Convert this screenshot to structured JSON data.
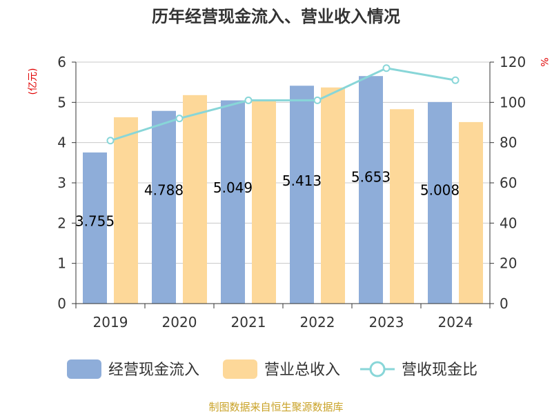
{
  "chart_data": {
    "type": "bar",
    "title": "历年经营现金流入、营业收入情况",
    "left_unit": "(亿元)",
    "right_unit": "%",
    "categories": [
      "2019",
      "2020",
      "2021",
      "2022",
      "2023",
      "2024"
    ],
    "series": [
      {
        "name": "经营现金流入",
        "type": "bar",
        "axis": "left",
        "color": "#8eadd9",
        "values": [
          3.755,
          4.788,
          5.049,
          5.413,
          5.653,
          5.008
        ],
        "labels": [
          "3.755",
          "4.788",
          "5.049",
          "5.413",
          "5.653",
          "5.008"
        ]
      },
      {
        "name": "营业总收入",
        "type": "bar",
        "axis": "left",
        "color": "#fdd899",
        "values": [
          4.63,
          5.18,
          5.05,
          5.37,
          4.83,
          4.51
        ]
      },
      {
        "name": "营收现金比",
        "type": "line",
        "axis": "right",
        "color": "#88d6d8",
        "values": [
          81,
          92,
          101,
          101,
          117,
          111
        ]
      }
    ],
    "y_left": {
      "min": 0,
      "max": 6,
      "ticks": [
        "0",
        "1",
        "2",
        "3",
        "4",
        "5",
        "6"
      ]
    },
    "y_right": {
      "min": 0,
      "max": 120,
      "ticks": [
        "0",
        "20",
        "40",
        "60",
        "80",
        "100",
        "120"
      ]
    },
    "grid": true,
    "legend": "bottom",
    "source": "制图数据来自恒生聚源数据库"
  }
}
